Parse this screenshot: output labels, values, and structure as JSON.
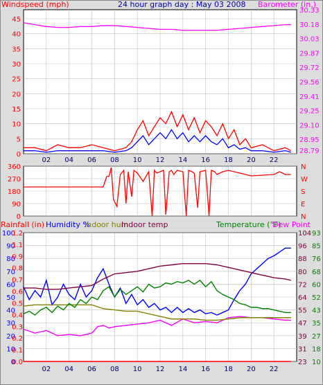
{
  "chart_data": [
    {
      "type": "line",
      "title": "24 hour graph day : May 03 2008",
      "ylabel": "Windspeed (mph)",
      "y2label": "Barometer (in.)",
      "x_ticks": [
        "02",
        "04",
        "06",
        "08",
        "10",
        "12",
        "14",
        "16",
        "18",
        "20",
        "22"
      ],
      "y_ticks": [
        "0",
        "5",
        "10",
        "15",
        "20",
        "25",
        "30",
        "35",
        "40",
        "45"
      ],
      "y2_ticks": [
        "28.79",
        "28.95",
        "29.10",
        "29.25",
        "29.41",
        "29.56",
        "29.72",
        "29.87",
        "30.03",
        "30.18",
        "30.33"
      ],
      "ylim": [
        0,
        48
      ],
      "y2lim": [
        28.79,
        30.33
      ],
      "xlim": [
        0,
        24
      ],
      "grid": true,
      "series": [
        {
          "name": "Windspeed (mph)",
          "color": "#ff0000",
          "x": [
            0,
            1,
            2,
            3,
            4,
            5,
            6,
            7,
            8,
            9,
            9.5,
            10,
            10.5,
            11,
            11.5,
            12,
            12.5,
            13,
            13.5,
            14,
            14.5,
            15,
            15.5,
            16,
            16.5,
            17,
            17.5,
            18,
            18.5,
            19,
            19.5,
            20,
            21,
            22,
            23,
            23.5
          ],
          "y": [
            2,
            2,
            1,
            3,
            2,
            2,
            3,
            2,
            1,
            2,
            4,
            8,
            11,
            6,
            9,
            12,
            10,
            14,
            9,
            13,
            8,
            12,
            7,
            11,
            9,
            6,
            10,
            5,
            8,
            3,
            5,
            2,
            3,
            1,
            2,
            1
          ]
        },
        {
          "name": "Wind gust",
          "color": "#0000ff",
          "x": [
            0,
            1,
            2,
            3,
            4,
            5,
            6,
            7,
            8,
            9,
            9.5,
            10,
            10.5,
            11,
            11.5,
            12,
            12.5,
            13,
            13.5,
            14,
            14.5,
            15,
            15.5,
            16,
            16.5,
            17,
            17.5,
            18,
            18.5,
            19,
            19.5,
            20,
            21,
            22,
            23,
            23.5
          ],
          "y": [
            1,
            1,
            0.5,
            1,
            1,
            1,
            1,
            1,
            0.5,
            1,
            2,
            4,
            6,
            3,
            5,
            7,
            5,
            8,
            5,
            7,
            4,
            6,
            4,
            6,
            4,
            3,
            5,
            2,
            3,
            1.5,
            2,
            1,
            1,
            0.5,
            1,
            0.5
          ]
        },
        {
          "name": "Barometer (in.)",
          "color": "#ff00ff",
          "x": [
            0,
            1,
            2,
            3,
            4,
            5,
            6,
            7,
            8,
            9,
            10,
            11,
            12,
            13,
            14,
            15,
            16,
            17,
            18,
            19,
            20,
            21,
            22,
            23,
            23.5
          ],
          "y": [
            30.19,
            30.17,
            30.15,
            30.14,
            30.14,
            30.15,
            30.15,
            30.16,
            30.16,
            30.15,
            30.14,
            30.13,
            30.12,
            30.12,
            30.11,
            30.11,
            30.11,
            30.11,
            30.12,
            30.13,
            30.14,
            30.15,
            30.16,
            30.17,
            30.17
          ]
        }
      ]
    },
    {
      "type": "line",
      "y_ticks": [
        "360",
        "270",
        "180",
        "90",
        "0"
      ],
      "y2_ticks": [
        "N",
        "W",
        "S",
        "E",
        "N"
      ],
      "ylim": [
        0,
        360
      ],
      "xlim": [
        0,
        24
      ],
      "series": [
        {
          "name": "Wind direction",
          "color": "#ff0000",
          "x": [
            0,
            7,
            7.3,
            7.5,
            7.7,
            7.9,
            8.2,
            8.5,
            8.8,
            9,
            9.2,
            9.5,
            9.7,
            10,
            10.5,
            11,
            11.3,
            11.5,
            11.7,
            12,
            12.3,
            12.5,
            12.8,
            13,
            13.2,
            13.5,
            14,
            14.3,
            14.5,
            14.8,
            15,
            15.3,
            15.5,
            16,
            16.3,
            16.5,
            16.8,
            17,
            17.5,
            18,
            19,
            20,
            21,
            22,
            22.5,
            23,
            23.5
          ],
          "y": [
            210,
            210,
            285,
            285,
            350,
            120,
            70,
            300,
            330,
            90,
            320,
            140,
            330,
            310,
            250,
            320,
            0,
            330,
            310,
            320,
            330,
            10,
            320,
            330,
            300,
            330,
            320,
            0,
            330,
            320,
            310,
            60,
            320,
            330,
            0,
            330,
            320,
            300,
            320,
            330,
            310,
            290,
            295,
            300,
            320,
            300,
            300
          ]
        }
      ]
    },
    {
      "type": "line",
      "legend": [
        "Rainfall (in)",
        "Humidity %",
        "Indoor hum",
        "Indoor temp",
        "Temperature (°F)",
        "Dew Point"
      ],
      "title_left": "Rainfall (in)",
      "y_ticks": [
        "0",
        "10",
        "20",
        "30",
        "40",
        "50",
        "60",
        "70",
        "80",
        "90",
        "100"
      ],
      "y_ticks_rain": [
        "0.0",
        "0.1",
        "0.2",
        "0.3",
        "0.4",
        "0.5",
        "0.6",
        "0.7",
        "0.8",
        "0.9",
        "1.1",
        "1.2"
      ],
      "y2_ticks_temp": [
        "10",
        "18",
        "27",
        "35",
        "43",
        "52",
        "60",
        "68",
        "76",
        "85",
        "93"
      ],
      "y2_ticks_inner": [
        "23",
        "31",
        "39",
        "47",
        "55",
        "64",
        "72",
        "80",
        "88",
        "96",
        "104"
      ],
      "xlim": [
        0,
        24
      ],
      "series": [
        {
          "name": "Humidity %",
          "color": "#0000ff",
          "x": [
            0,
            0.5,
            1,
            1.5,
            2,
            2.5,
            3,
            3.5,
            4,
            4.5,
            5,
            5.5,
            6,
            6.5,
            7,
            7.5,
            8,
            8.5,
            9,
            9.5,
            10,
            10.5,
            11,
            11.5,
            12,
            12.5,
            13,
            13.5,
            14,
            14.5,
            15,
            15.5,
            16,
            16.5,
            17,
            17.5,
            18,
            18.5,
            19,
            19.5,
            20,
            20.5,
            21,
            21.5,
            22,
            22.5,
            23,
            23.5
          ],
          "y": [
            58,
            48,
            55,
            50,
            63,
            44,
            50,
            60,
            52,
            48,
            60,
            50,
            55,
            65,
            72,
            60,
            50,
            57,
            45,
            52,
            44,
            48,
            42,
            45,
            40,
            42,
            38,
            42,
            38,
            41,
            38,
            40,
            37,
            38,
            36,
            38,
            40,
            48,
            55,
            60,
            68,
            72,
            76,
            80,
            82,
            85,
            88,
            88
          ]
        },
        {
          "name": "Dew Point",
          "color": "#ff00ff",
          "x": [
            0,
            1,
            2,
            3,
            4,
            5,
            6,
            6.5,
            7,
            7.5,
            8,
            9,
            10,
            11,
            12,
            13,
            14,
            15,
            16,
            17,
            17.5,
            18,
            19,
            20,
            21,
            22,
            23,
            23.5
          ],
          "y": [
            25,
            22,
            24,
            20,
            21,
            20,
            22,
            27,
            28,
            26,
            27,
            28,
            29,
            30,
            32,
            28,
            33,
            30,
            31,
            30,
            32,
            34,
            35,
            34,
            34,
            33,
            32,
            32
          ]
        },
        {
          "name": "Indoor hum",
          "color": "#808000",
          "x": [
            0,
            1,
            2,
            3,
            4,
            5,
            6,
            7,
            8,
            9,
            10,
            11,
            12,
            13,
            14,
            15,
            16,
            17,
            18,
            19,
            20,
            21,
            22,
            23,
            23.5
          ],
          "y": [
            43,
            44,
            44,
            44,
            44,
            44,
            44,
            41,
            40,
            39,
            39,
            37,
            35,
            33,
            33,
            33,
            32,
            32,
            33,
            34,
            34,
            34,
            34,
            34,
            34
          ]
        },
        {
          "name": "Indoor temp",
          "color": "#800040",
          "x": [
            0,
            1,
            2,
            3,
            4,
            5,
            6,
            7,
            8,
            9,
            10,
            11,
            12,
            13,
            14,
            15,
            16,
            17,
            18,
            19,
            20,
            21,
            22,
            23,
            23.5
          ],
          "y": [
            57,
            57,
            56,
            56,
            57,
            58,
            59,
            64,
            68,
            69,
            70,
            72,
            74,
            75,
            76,
            76,
            76,
            75,
            73,
            71,
            69,
            67,
            65,
            64,
            63
          ]
        },
        {
          "name": "Temperature (°F)",
          "color": "#008000",
          "x": [
            0,
            0.5,
            1,
            1.5,
            2,
            2.5,
            3,
            3.5,
            4,
            4.5,
            5,
            5.5,
            6,
            6.5,
            7,
            7.5,
            8,
            8.5,
            9,
            9.5,
            10,
            10.5,
            11,
            11.5,
            12,
            12.5,
            13,
            13.5,
            14,
            14.5,
            15,
            15.5,
            16,
            16.5,
            17,
            17.5,
            18,
            18.5,
            19,
            19.5,
            20,
            20.5,
            21,
            21.5,
            22,
            22.5,
            23,
            23.5
          ],
          "y": [
            37,
            39,
            36,
            40,
            42,
            38,
            43,
            40,
            45,
            42,
            48,
            45,
            50,
            48,
            55,
            58,
            50,
            56,
            52,
            55,
            58,
            54,
            60,
            57,
            58,
            61,
            60,
            62,
            61,
            63,
            60,
            63,
            58,
            62,
            55,
            52,
            50,
            48,
            45,
            44,
            42,
            42,
            41,
            41,
            40,
            39,
            38,
            38
          ]
        },
        {
          "name": "Rainfall (in)",
          "color": "#ff0000",
          "x": [
            0,
            23.5
          ],
          "y": [
            0,
            0
          ]
        }
      ]
    }
  ],
  "labels": {
    "top_left": "Windspeed (mph)",
    "top_title": "24 hour graph day : May 03 2008",
    "top_right": "Barometer (in.)",
    "bottom_rainfall": "Rainfall (in)",
    "bottom_humidity": "Humidity %",
    "bottom_indoor_hum": "Indoor hum",
    "bottom_indoor_temp": "Indoor temp",
    "bottom_temperature": "Temperature (°F)",
    "bottom_dewpoint": "Dew Point"
  },
  "colors": {
    "wind": "#ff0000",
    "gust": "#0000ff",
    "baro": "#ff00ff",
    "grid": "#c0c0c0"
  }
}
